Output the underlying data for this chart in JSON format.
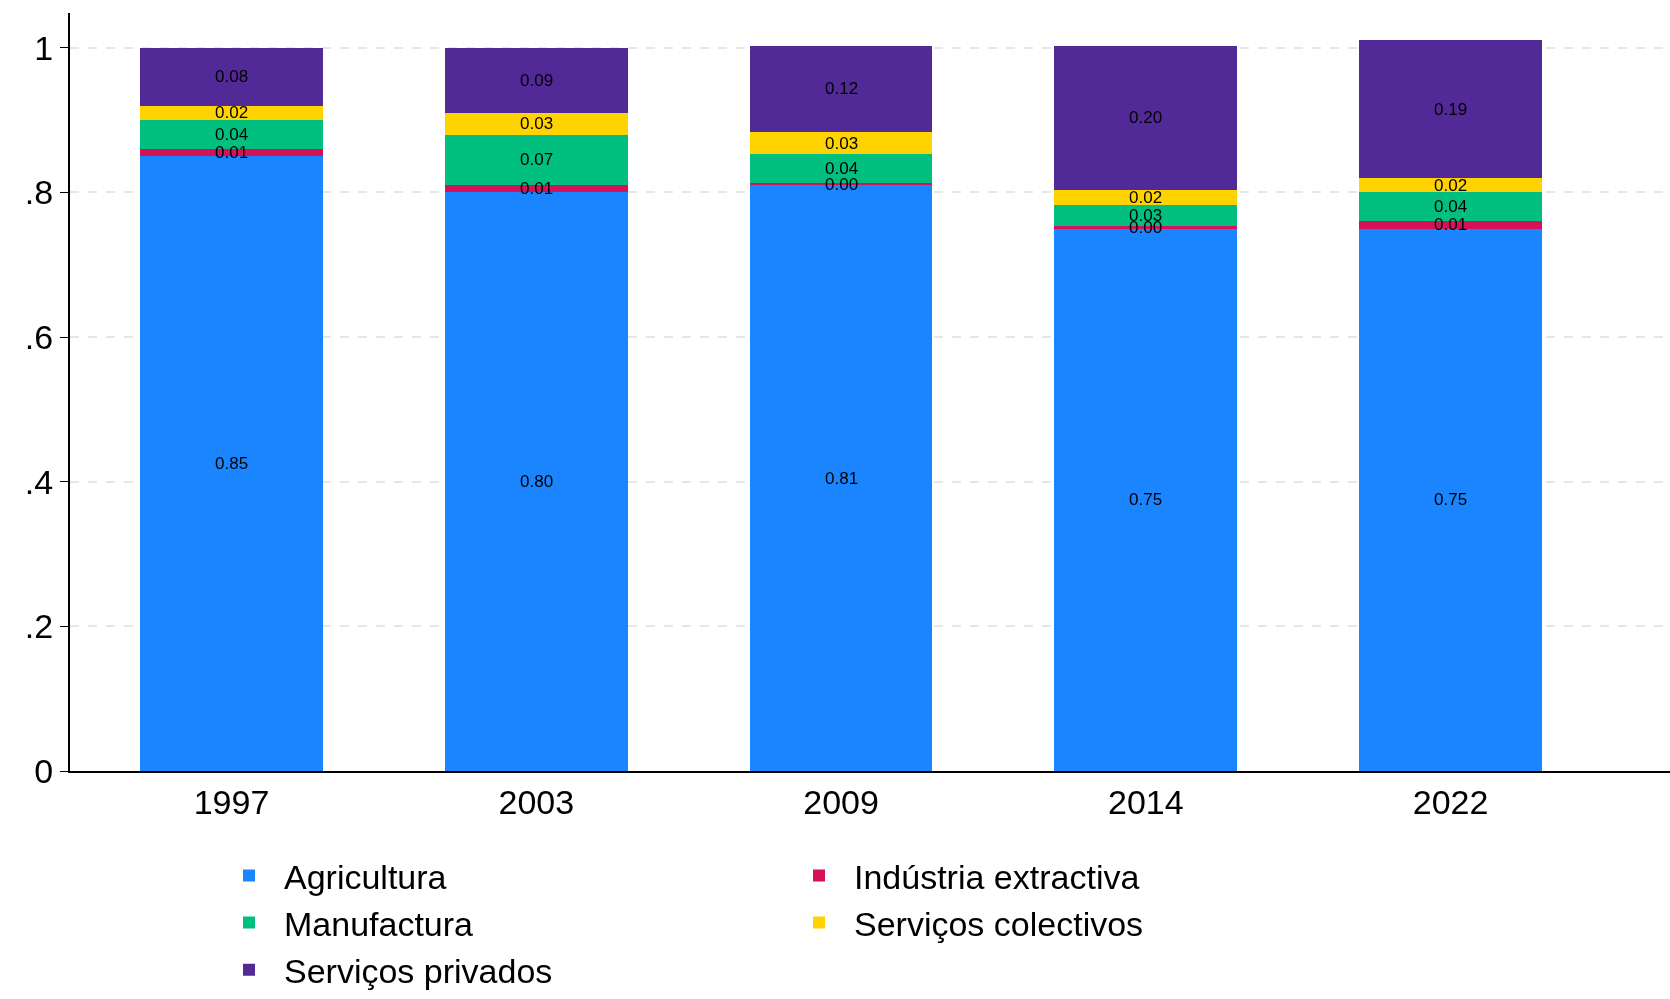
{
  "chart_data": {
    "type": "bar",
    "stacked": true,
    "categories": [
      "1997",
      "2003",
      "2009",
      "2014",
      "2022"
    ],
    "series": [
      {
        "name": "Agricultura",
        "color": "#1a85ff",
        "values": [
          0.85,
          0.8,
          0.81,
          0.75,
          0.75
        ],
        "value_labels": [
          "0.85",
          "0.80",
          "0.81",
          "0.75",
          "0.75"
        ]
      },
      {
        "name": "Indústria extractiva",
        "color": "#d41159",
        "values": [
          0.01,
          0.01,
          0.003,
          0.003,
          0.01
        ],
        "value_labels": [
          "0.01",
          "0.01",
          "0.00",
          "0.00",
          "0.01"
        ]
      },
      {
        "name": "Manufactura",
        "color": "#00bf7f",
        "values": [
          0.04,
          0.07,
          0.04,
          0.03,
          0.04
        ],
        "value_labels": [
          "0.04",
          "0.07",
          "0.04",
          "0.03",
          "0.04"
        ]
      },
      {
        "name": "Serviços colectivos",
        "color": "#ffd300",
        "values": [
          0.02,
          0.03,
          0.03,
          0.02,
          0.02
        ],
        "value_labels": [
          "0.02",
          "0.03",
          "0.03",
          "0.02",
          "0.02"
        ]
      },
      {
        "name": "Serviços privados",
        "color": "#512a98",
        "values": [
          0.08,
          0.09,
          0.12,
          0.2,
          0.19
        ],
        "value_labels": [
          "0.08",
          "0.09",
          "0.12",
          "0.20",
          "0.19"
        ]
      }
    ],
    "ylim": [
      0,
      1.048
    ],
    "yticks": [
      0,
      {
        "value": 0.2,
        "label": ".2"
      },
      {
        "value": 0.4,
        "label": ".4"
      },
      {
        "value": 0.6,
        "label": ".6"
      },
      {
        "value": 0.8,
        "label": ".8"
      },
      1
    ],
    "grid": "y",
    "legend": "bottom"
  }
}
